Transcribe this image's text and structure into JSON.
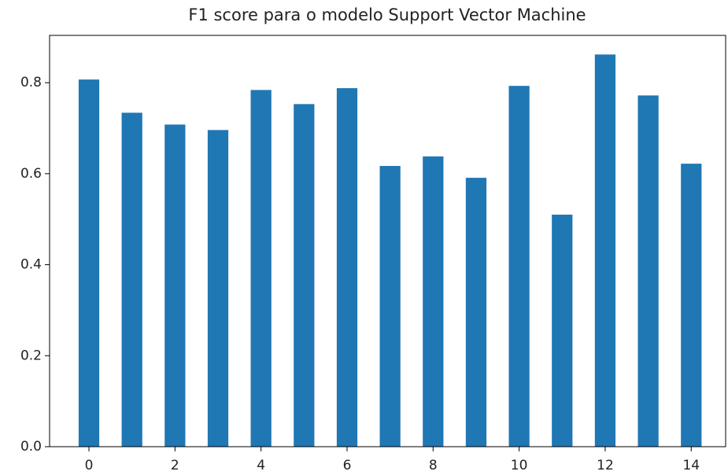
{
  "chart_data": {
    "type": "bar",
    "title": "F1 score para o modelo Support Vector Machine",
    "x": [
      0,
      1,
      2,
      3,
      4,
      5,
      6,
      7,
      8,
      9,
      10,
      11,
      12,
      13,
      14
    ],
    "values": [
      0.807,
      0.734,
      0.708,
      0.696,
      0.784,
      0.753,
      0.788,
      0.617,
      0.638,
      0.591,
      0.793,
      0.51,
      0.862,
      0.772,
      0.622
    ],
    "color": "#1f77b4",
    "xlim": [
      -0.915,
      14.8
    ],
    "xticks": [
      0,
      2,
      4,
      6,
      8,
      10,
      12,
      14
    ],
    "ylim": [
      0,
      0.904
    ],
    "yticks": [
      {
        "value": 0,
        "label": "0.0"
      },
      0.2,
      0.4,
      0.6,
      0.8
    ],
    "bar_width": 0.48,
    "grid": false
  }
}
